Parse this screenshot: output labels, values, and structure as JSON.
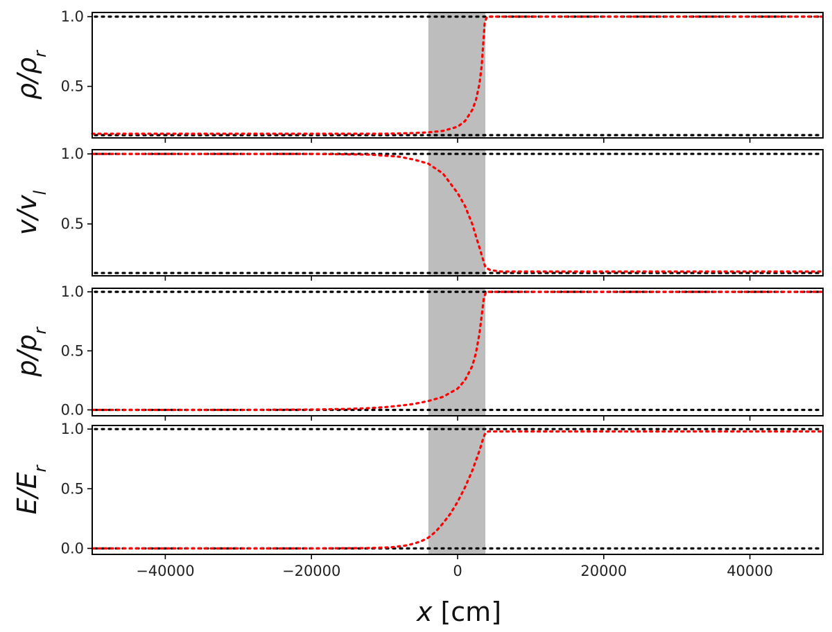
{
  "chart_data": {
    "type": "line",
    "xlabel": "x [cm]",
    "xlim": [
      -50000,
      50000
    ],
    "x_ticks": [
      -40000,
      -20000,
      0,
      20000,
      40000
    ],
    "x_tick_labels": [
      "−40000",
      "−20000",
      "0",
      "20000",
      "40000"
    ],
    "shaded_region": {
      "x": [
        -4000,
        3800
      ],
      "color": "#bdbdbd"
    },
    "line_styles": {
      "reference": "black dotted",
      "data": "red dotted"
    },
    "panels": [
      {
        "ylabel": {
          "base": "ρ/ρ",
          "sub": "r"
        },
        "ylim": [
          0.13,
          1.03
        ],
        "y_ticks": [
          0.5,
          1.0
        ],
        "y_tick_labels": [
          "0.5",
          "1.0"
        ],
        "reference_lines": [
          1.0,
          0.15
        ],
        "series": {
          "x": [
            -50000,
            -20000,
            -10000,
            -6000,
            -4000,
            -2000,
            0,
            1000,
            2000,
            2500,
            3000,
            3300,
            3500,
            3700,
            4000,
            6000,
            20000,
            50000
          ],
          "y": [
            0.16,
            0.16,
            0.16,
            0.165,
            0.17,
            0.18,
            0.21,
            0.25,
            0.33,
            0.4,
            0.52,
            0.65,
            0.8,
            0.95,
            1.0,
            1.0,
            1.0,
            1.0
          ]
        }
      },
      {
        "ylabel": {
          "base": "v/v",
          "sub": "l"
        },
        "ylim": [
          0.13,
          1.03
        ],
        "y_ticks": [
          0.5,
          1.0
        ],
        "y_tick_labels": [
          "0.5",
          "1.0"
        ],
        "reference_lines": [
          1.0,
          0.15
        ],
        "series": {
          "x": [
            -50000,
            -20000,
            -12000,
            -8000,
            -6000,
            -4000,
            -2000,
            0,
            1000,
            2000,
            3000,
            3800,
            4500,
            6000,
            20000,
            50000
          ],
          "y": [
            1.0,
            1.0,
            0.995,
            0.98,
            0.96,
            0.93,
            0.86,
            0.72,
            0.63,
            0.5,
            0.33,
            0.19,
            0.17,
            0.16,
            0.16,
            0.16
          ]
        }
      },
      {
        "ylabel": {
          "base": "p/p",
          "sub": "r"
        },
        "ylim": [
          -0.05,
          1.03
        ],
        "y_ticks": [
          0.0,
          0.5,
          1.0
        ],
        "y_tick_labels": [
          "0.0",
          "0.5",
          "1.0"
        ],
        "reference_lines": [
          1.0,
          0.0
        ],
        "series": {
          "x": [
            -50000,
            -30000,
            -20000,
            -15000,
            -12000,
            -10000,
            -8000,
            -6000,
            -4000,
            -2000,
            0,
            1000,
            2000,
            2500,
            3000,
            3300,
            3600,
            3900,
            6000,
            20000,
            50000
          ],
          "y": [
            0.0,
            0.0,
            0.003,
            0.008,
            0.015,
            0.023,
            0.035,
            0.05,
            0.075,
            0.11,
            0.18,
            0.25,
            0.37,
            0.48,
            0.65,
            0.8,
            0.95,
            1.0,
            1.0,
            1.0,
            1.0
          ]
        }
      },
      {
        "ylabel": {
          "base": "E/E",
          "sub": "r"
        },
        "ylim": [
          -0.05,
          1.03
        ],
        "y_ticks": [
          0.0,
          0.5,
          1.0
        ],
        "y_tick_labels": [
          "0.0",
          "0.5",
          "1.0"
        ],
        "reference_lines": [
          1.0,
          0.0
        ],
        "series": {
          "x": [
            -50000,
            -20000,
            -12000,
            -9000,
            -7000,
            -6000,
            -5000,
            -4000,
            -3000,
            -2000,
            -1000,
            0,
            1000,
            2000,
            3000,
            3500,
            3800,
            4200,
            20000,
            50000
          ],
          "y": [
            0.0,
            0.0,
            0.003,
            0.01,
            0.025,
            0.04,
            0.06,
            0.09,
            0.14,
            0.21,
            0.29,
            0.39,
            0.51,
            0.65,
            0.82,
            0.92,
            0.97,
            0.98,
            0.98,
            0.98
          ]
        }
      }
    ]
  }
}
